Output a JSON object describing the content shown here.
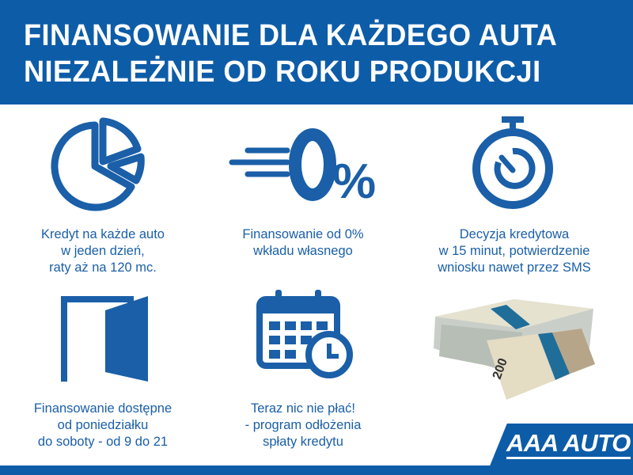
{
  "header": {
    "line1": "FINANSOWANIE DLA KAŻDEGO AUTA",
    "line2": "NIEZALEŻNIE OD ROKU PRODUKCJI"
  },
  "features": [
    {
      "icon": "pie-chart-icon",
      "lines": [
        "Kredyt na każde auto",
        "w jeden dzień,",
        "raty aż na 120 mc."
      ]
    },
    {
      "icon": "zero-percent-icon",
      "icon_text": "0%",
      "lines": [
        "Finansowanie od 0%",
        "wkładu własnego"
      ]
    },
    {
      "icon": "stopwatch-icon",
      "lines": [
        "Decyzja kredytowa",
        "w 15 minut, potwierdzenie",
        "wniosku nawet przez SMS"
      ]
    },
    {
      "icon": "door-icon",
      "lines": [
        "Finansowanie dostępne",
        "od poniedziałku",
        "do soboty - od 9 do 21"
      ]
    },
    {
      "icon": "calendar-clock-icon",
      "lines": [
        "Teraz nic nie płać!",
        "- program odłożenia",
        "spłaty kredytu"
      ]
    }
  ],
  "logo": {
    "text": "AAA AUTO"
  },
  "colors": {
    "brand": "#0d5ca8",
    "white": "#ffffff"
  }
}
